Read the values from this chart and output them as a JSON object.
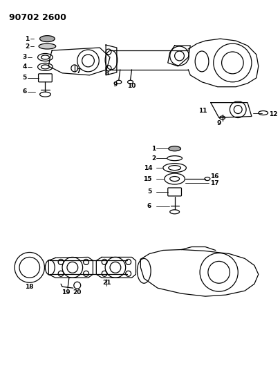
{
  "title": "90702 2600",
  "background_color": "#ffffff",
  "line_color": "#000000",
  "text_color": "#000000",
  "title_fontsize": 9,
  "label_fontsize": 6.5,
  "figsize": [
    4.05,
    5.33
  ],
  "dpi": 100
}
